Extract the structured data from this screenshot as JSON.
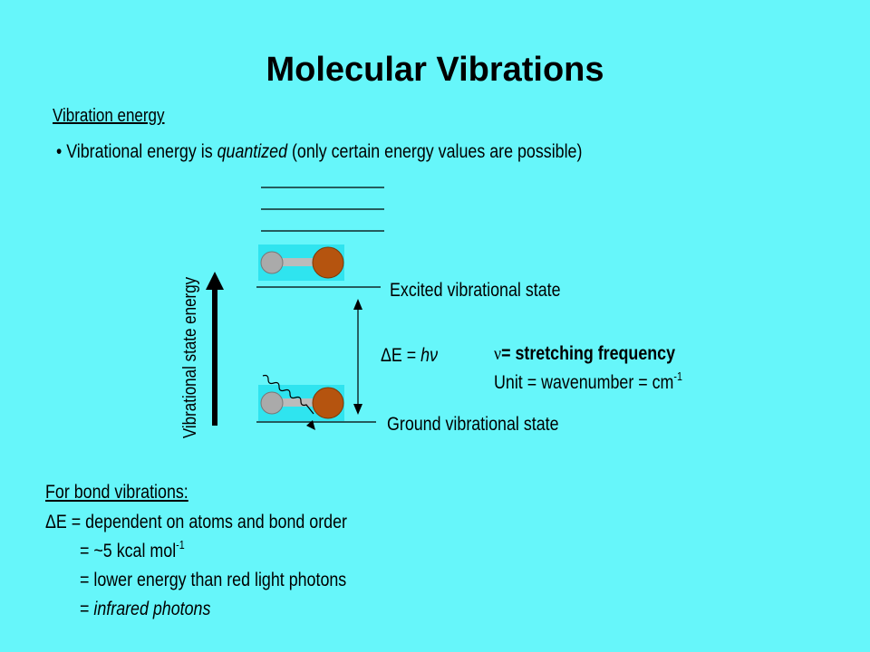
{
  "title": "Molecular Vibrations",
  "subtitle": "Vibration energy",
  "bullet": {
    "before": "Vibrational energy is ",
    "emphasis": "quantized",
    "after": " (only certain energy values are possible)"
  },
  "diagram": {
    "axis_label": "Vibrational state energy",
    "excited": "Excited vibrational state",
    "ground": "Ground vibrational state",
    "delta": {
      "prefix": "ΔE = ",
      "emphasis": "hν"
    },
    "frequency": {
      "symbol": "ν",
      "text": "= stretching frequency"
    },
    "unit": {
      "text": "Unit = wavenumber = cm",
      "sup": "-1"
    }
  },
  "notes": {
    "heading": "For bond vibrations:",
    "line1": "ΔE = dependent on atoms and bond order",
    "line2": {
      "text": "= ~5 kcal mol",
      "sup": "-1"
    },
    "line3": "= lower energy than red light photons",
    "line4": {
      "prefix": "= ",
      "emphasis": "infrared photons"
    }
  }
}
